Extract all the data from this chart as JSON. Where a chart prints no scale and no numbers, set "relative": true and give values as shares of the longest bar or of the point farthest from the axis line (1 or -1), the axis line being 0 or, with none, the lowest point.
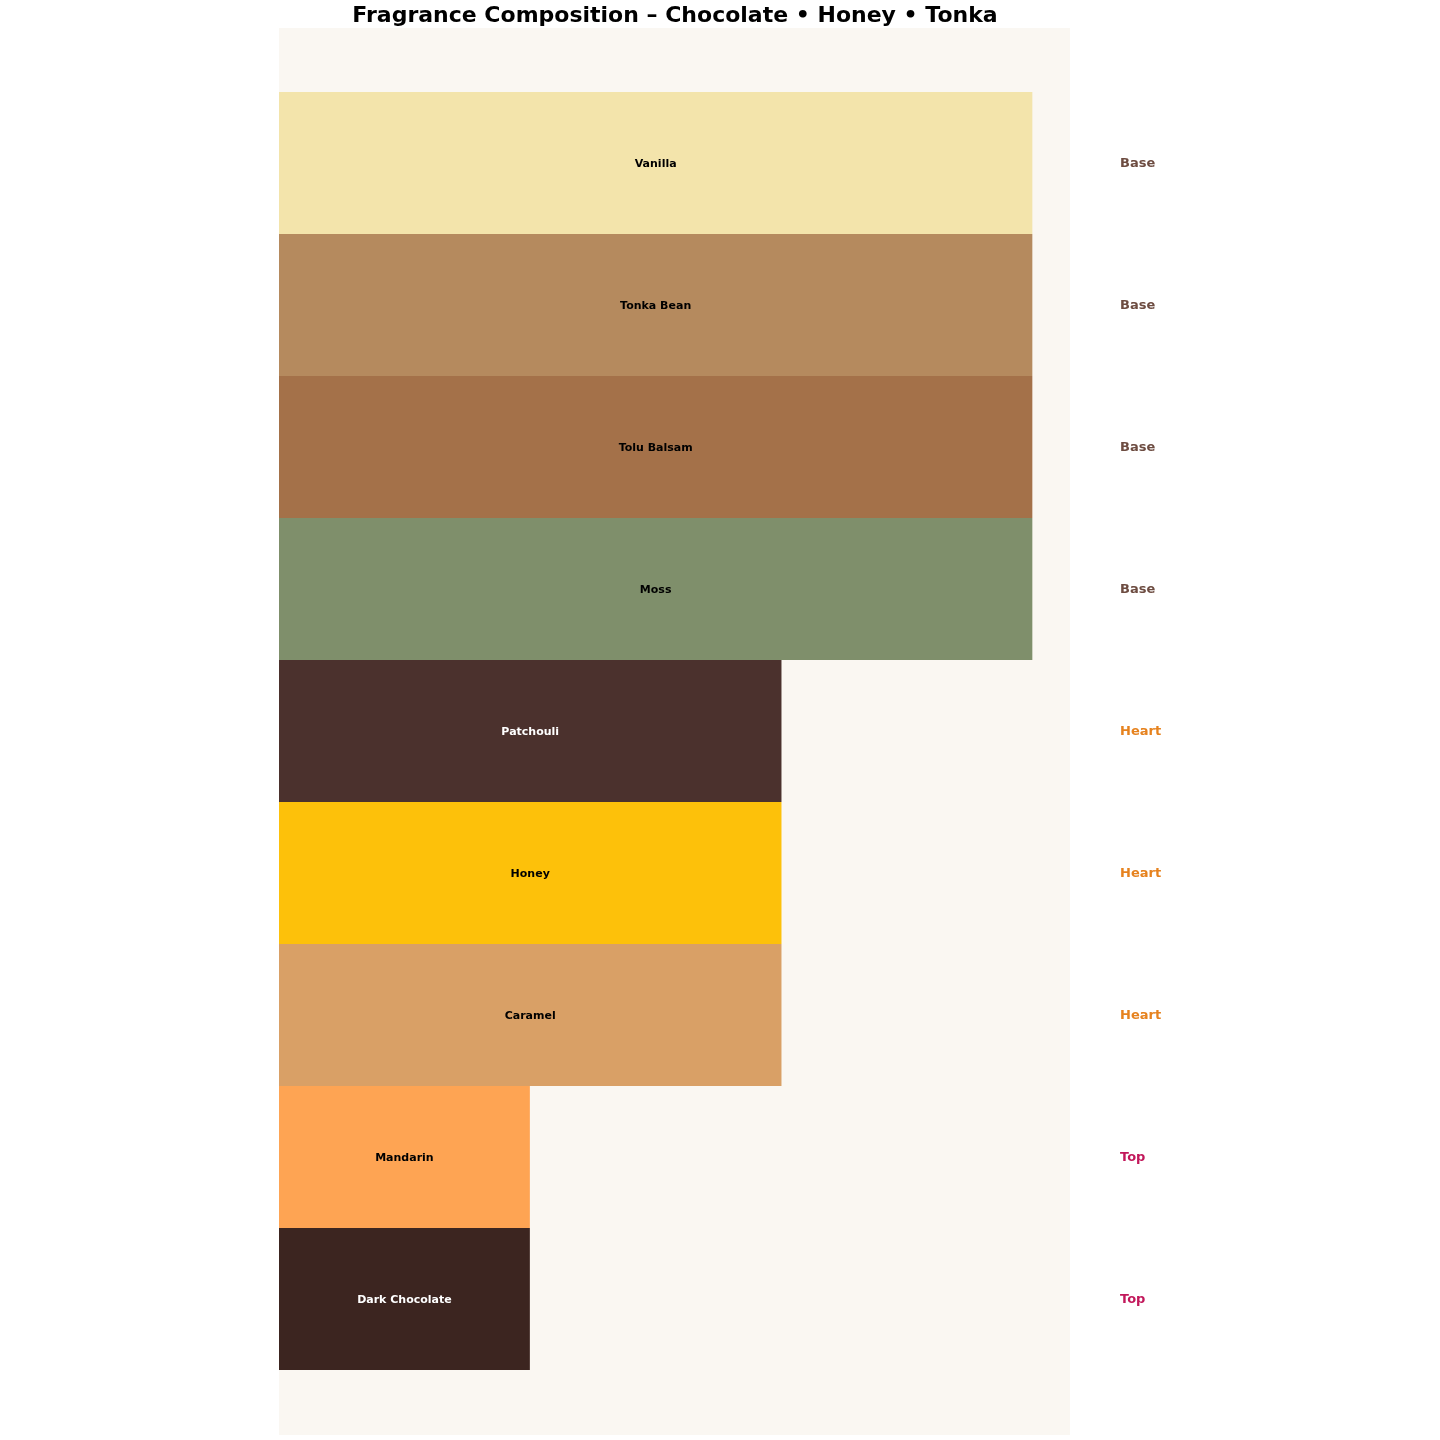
{
  "chart_data": {
    "type": "bar",
    "orientation": "horizontal",
    "relative": true,
    "title": "Fragrance Composition – Chocolate • Honey • Tonka",
    "categories": [
      "Vanilla",
      "Tonka Bean",
      "Tolu Balsam",
      "Moss",
      "Patchouli",
      "Honey",
      "Caramel",
      "Mandarin",
      "Dark Chocolate"
    ],
    "values": [
      1,
      1,
      1,
      1,
      0.667,
      0.667,
      0.667,
      0.333,
      0.333
    ],
    "colors": [
      "#f3e4ab",
      "#b58a5e",
      "#a47149",
      "#7f8f6b",
      "#4b312d",
      "#fdc10a",
      "#d9a066",
      "#fea453",
      "#3c2520"
    ],
    "annotations": [
      "Base",
      "Base",
      "Base",
      "Base",
      "Heart",
      "Heart",
      "Heart",
      "Top",
      "Top"
    ],
    "grid": false,
    "legend": false
  }
}
